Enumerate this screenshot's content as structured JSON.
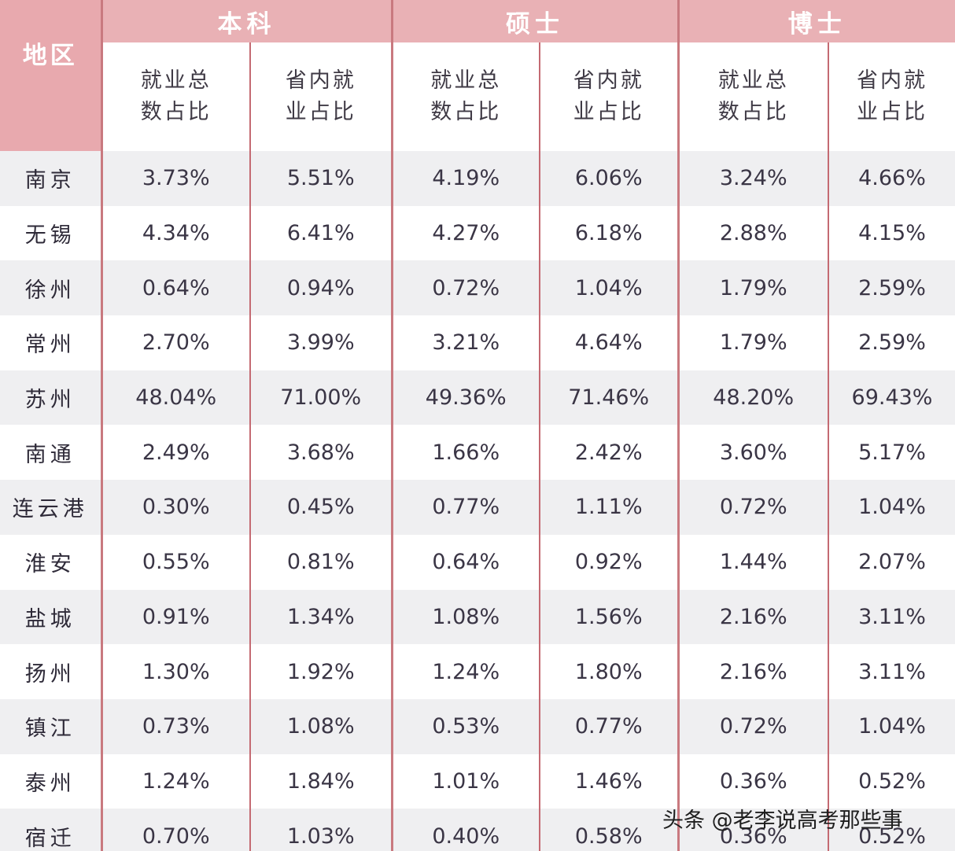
{
  "header": {
    "region_label": "地区",
    "groups": [
      "本科",
      "硕士",
      "博士"
    ],
    "subheaders": [
      "就业总数占比",
      "省内就业占比",
      "就业总数占比",
      "省内就业占比",
      "就业总数占比",
      "省内就业占比"
    ]
  },
  "rows": [
    {
      "region": "南京",
      "values": [
        "3.73%",
        "5.51%",
        "4.19%",
        "6.06%",
        "3.24%",
        "4.66%"
      ]
    },
    {
      "region": "无锡",
      "values": [
        "4.34%",
        "6.41%",
        "4.27%",
        "6.18%",
        "2.88%",
        "4.15%"
      ]
    },
    {
      "region": "徐州",
      "values": [
        "0.64%",
        "0.94%",
        "0.72%",
        "1.04%",
        "1.79%",
        "2.59%"
      ]
    },
    {
      "region": "常州",
      "values": [
        "2.70%",
        "3.99%",
        "3.21%",
        "4.64%",
        "1.79%",
        "2.59%"
      ]
    },
    {
      "region": "苏州",
      "values": [
        "48.04%",
        "71.00%",
        "49.36%",
        "71.46%",
        "48.20%",
        "69.43%"
      ]
    },
    {
      "region": "南通",
      "values": [
        "2.49%",
        "3.68%",
        "1.66%",
        "2.42%",
        "3.60%",
        "5.17%"
      ]
    },
    {
      "region": "连云港",
      "values": [
        "0.30%",
        "0.45%",
        "0.77%",
        "1.11%",
        "0.72%",
        "1.04%"
      ]
    },
    {
      "region": "淮安",
      "values": [
        "0.55%",
        "0.81%",
        "0.64%",
        "0.92%",
        "1.44%",
        "2.07%"
      ]
    },
    {
      "region": "盐城",
      "values": [
        "0.91%",
        "1.34%",
        "1.08%",
        "1.56%",
        "2.16%",
        "3.11%"
      ]
    },
    {
      "region": "扬州",
      "values": [
        "1.30%",
        "1.92%",
        "1.24%",
        "1.80%",
        "2.16%",
        "3.11%"
      ]
    },
    {
      "region": "镇江",
      "values": [
        "0.73%",
        "1.08%",
        "0.53%",
        "0.77%",
        "0.72%",
        "1.04%"
      ]
    },
    {
      "region": "泰州",
      "values": [
        "1.24%",
        "1.84%",
        "1.01%",
        "1.46%",
        "0.36%",
        "0.52%"
      ]
    },
    {
      "region": "宿迁",
      "values": [
        "0.70%",
        "1.03%",
        "0.40%",
        "0.58%",
        "0.36%",
        "0.52%"
      ]
    }
  ],
  "watermark": "头条 @老李说高考那些事"
}
